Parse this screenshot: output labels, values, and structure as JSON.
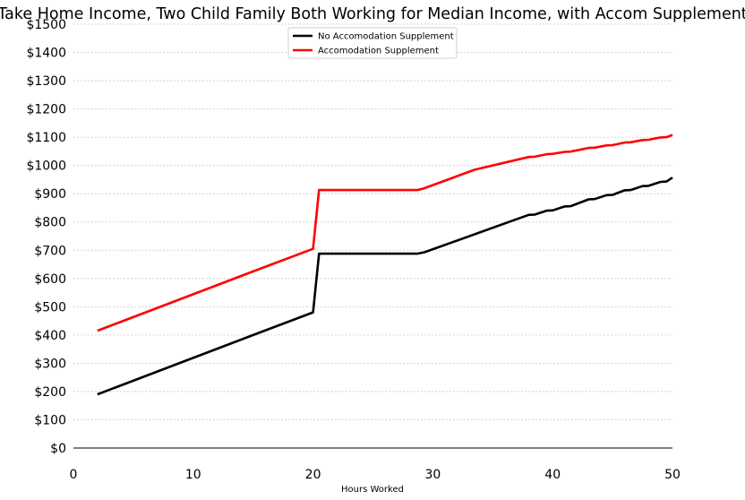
{
  "chart_data": {
    "type": "line",
    "title": "Take Home Income, Two Child Family Both Working for Median Income, with Accom Supplement",
    "xlabel": "Hours Worked",
    "ylabel": "",
    "xlim": [
      0,
      50
    ],
    "ylim": [
      0,
      1500
    ],
    "xticks": [
      0,
      10,
      20,
      30,
      40,
      50
    ],
    "xtick_labels": [
      "0",
      "10",
      "20",
      "30",
      "40",
      "50"
    ],
    "yticks": [
      0,
      100,
      200,
      300,
      400,
      500,
      600,
      700,
      800,
      900,
      1000,
      1100,
      1200,
      1300,
      1400,
      1500
    ],
    "ytick_labels": [
      "$0",
      "$100",
      "$200",
      "$300",
      "$400",
      "$500",
      "$600",
      "$700",
      "$800",
      "$900",
      "$1000",
      "$1100",
      "$1200",
      "$1300",
      "$1400",
      "$1500"
    ],
    "grid": "horizontal",
    "legend_position": "top-center",
    "series": [
      {
        "name": "No Accomodation Supplement",
        "color": "#000000",
        "x": [
          2,
          15,
          20,
          20.5,
          28.7,
          29.3,
          38,
          38.5,
          39.5,
          40,
          41,
          41.5,
          43,
          43.5,
          44.5,
          45,
          46,
          46.5,
          47.5,
          48,
          49,
          49.5,
          50
        ],
        "y": [
          190,
          400,
          480,
          688,
          688,
          693,
          825,
          826,
          840,
          841,
          855,
          856,
          880,
          881,
          895,
          896,
          912,
          913,
          927,
          928,
          942,
          943,
          957
        ]
      },
      {
        "name": "Accomodation Supplement",
        "color": "#ff0000",
        "x": [
          2,
          15,
          20,
          20.5,
          28.7,
          29.2,
          33.5,
          38,
          38.5,
          39.5,
          40,
          41,
          41.5,
          43,
          43.5,
          44.5,
          45,
          46,
          46.5,
          47.5,
          48,
          49,
          49.5,
          50
        ],
        "y": [
          415,
          625,
          705,
          913,
          913,
          918,
          985,
          1030,
          1031,
          1040,
          1041,
          1048,
          1049,
          1062,
          1063,
          1071,
          1072,
          1081,
          1082,
          1090,
          1091,
          1099,
          1100,
          1108
        ]
      }
    ]
  }
}
